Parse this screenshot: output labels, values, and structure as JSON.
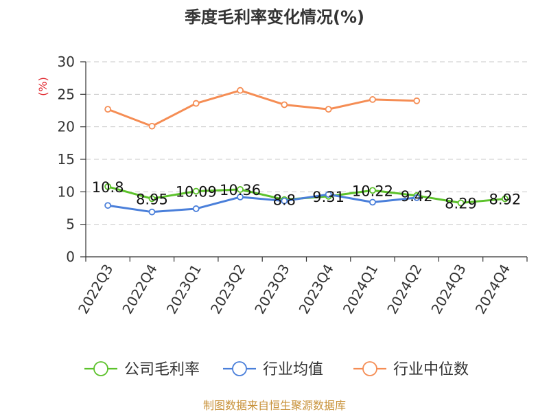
{
  "chart_data": {
    "type": "line",
    "title": "季度毛利率变化情况(%)",
    "ylabel": "(%)",
    "xlabel": "",
    "ylim": [
      0,
      30
    ],
    "yticks": [
      0,
      5,
      10,
      15,
      20,
      25,
      30
    ],
    "categories": [
      "2022Q3",
      "2022Q4",
      "2023Q1",
      "2023Q2",
      "2023Q3",
      "2023Q4",
      "2024Q1",
      "2024Q2",
      "2024Q3",
      "2024Q4"
    ],
    "grid": true,
    "legend_position": "bottom",
    "series": [
      {
        "name": "公司毛利率",
        "color": "#5cc22b",
        "values": [
          10.8,
          8.95,
          10.09,
          10.36,
          8.8,
          9.31,
          10.22,
          9.42,
          8.29,
          8.92
        ],
        "data_labels": [
          "10.8",
          "8.95",
          "10.09",
          "10.36",
          "8.8",
          "9.31",
          "10.22",
          "9.42",
          "8.29",
          "8.92"
        ]
      },
      {
        "name": "行业均值",
        "color": "#4a7fda",
        "values": [
          7.9,
          6.9,
          7.4,
          9.2,
          8.6,
          9.6,
          8.4,
          9.1,
          null,
          null
        ]
      },
      {
        "name": "行业中位数",
        "color": "#f58d54",
        "values": [
          22.7,
          20.1,
          23.6,
          25.6,
          23.4,
          22.7,
          24.2,
          24.0,
          null,
          null
        ]
      }
    ]
  },
  "footer": {
    "source": "制图数据来自恒生聚源数据库"
  }
}
